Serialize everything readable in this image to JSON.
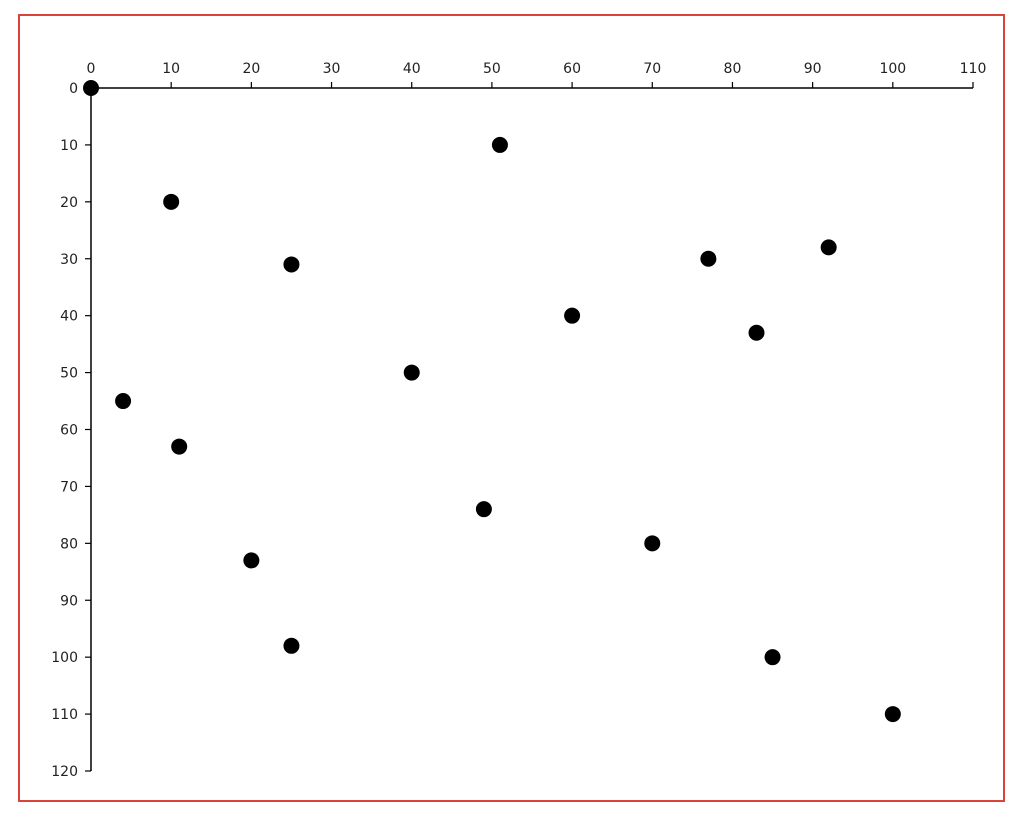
{
  "chart_data": {
    "type": "scatter",
    "title": "",
    "xlabel": "",
    "ylabel": "",
    "xlim": [
      0,
      110
    ],
    "ylim": [
      0,
      120
    ],
    "y_inverted": true,
    "x_axis_position": "top",
    "grid": false,
    "x_ticks": [
      "0",
      "10",
      "20",
      "30",
      "40",
      "50",
      "60",
      "70",
      "80",
      "90",
      "100",
      "110"
    ],
    "y_ticks": [
      "0",
      "10",
      "20",
      "30",
      "40",
      "50",
      "60",
      "70",
      "80",
      "90",
      "100",
      "110",
      "120"
    ],
    "point_color": "#000000",
    "frame_color": "#d9443a",
    "points": [
      {
        "x": 0,
        "y": 0
      },
      {
        "x": 51,
        "y": 10
      },
      {
        "x": 10,
        "y": 20
      },
      {
        "x": 25,
        "y": 31
      },
      {
        "x": 77,
        "y": 30
      },
      {
        "x": 92,
        "y": 28
      },
      {
        "x": 60,
        "y": 40
      },
      {
        "x": 83,
        "y": 43
      },
      {
        "x": 40,
        "y": 50
      },
      {
        "x": 4,
        "y": 55
      },
      {
        "x": 11,
        "y": 63
      },
      {
        "x": 49,
        "y": 74
      },
      {
        "x": 70,
        "y": 80
      },
      {
        "x": 20,
        "y": 83
      },
      {
        "x": 25,
        "y": 98
      },
      {
        "x": 85,
        "y": 100
      },
      {
        "x": 100,
        "y": 110
      }
    ]
  }
}
